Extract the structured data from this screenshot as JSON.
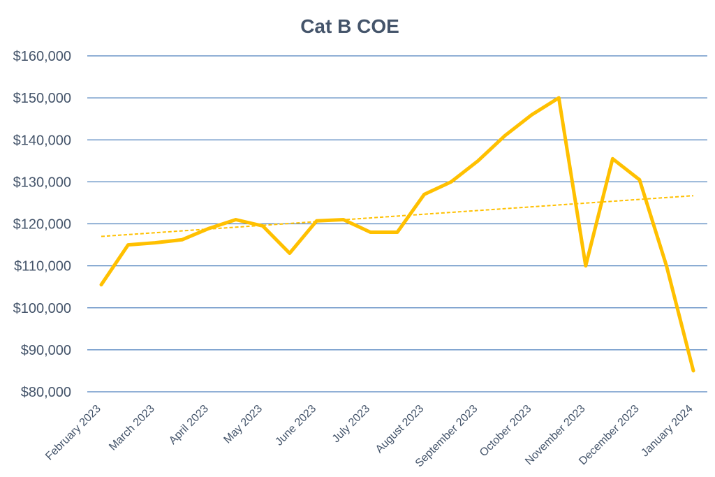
{
  "chart_data": {
    "type": "line",
    "title": "Cat B COE",
    "xlabel": "",
    "ylabel": "",
    "ylim": [
      80000,
      160000
    ],
    "yticks": [
      80000,
      90000,
      100000,
      110000,
      120000,
      130000,
      140000,
      150000,
      160000
    ],
    "ytick_labels": [
      "$80,000",
      "$90,000",
      "$100,000",
      "$110,000",
      "$120,000",
      "$130,000",
      "$140,000",
      "$150,000",
      "$160,000"
    ],
    "x_tick_labels": [
      "February 2023",
      "March 2023",
      "April 2023",
      "May 2023",
      "June 2023",
      "July 2023",
      "August 2023",
      "September 2023",
      "October 2023",
      "November 2023",
      "December 2023",
      "January 2024"
    ],
    "grid": true,
    "legend": "none",
    "series": [
      {
        "color": "#FFC000",
        "values": [
          105500,
          115000,
          115500,
          116200,
          118900,
          121000,
          119500,
          113000,
          120700,
          121000,
          118000,
          118000,
          127000,
          130000,
          135000,
          141000,
          146000,
          150000,
          110000,
          135500,
          130500,
          110000,
          85000
        ]
      }
    ],
    "trendline": {
      "style": "dashed",
      "color": "#FFC000",
      "start": 117000,
      "end": 126700
    }
  }
}
